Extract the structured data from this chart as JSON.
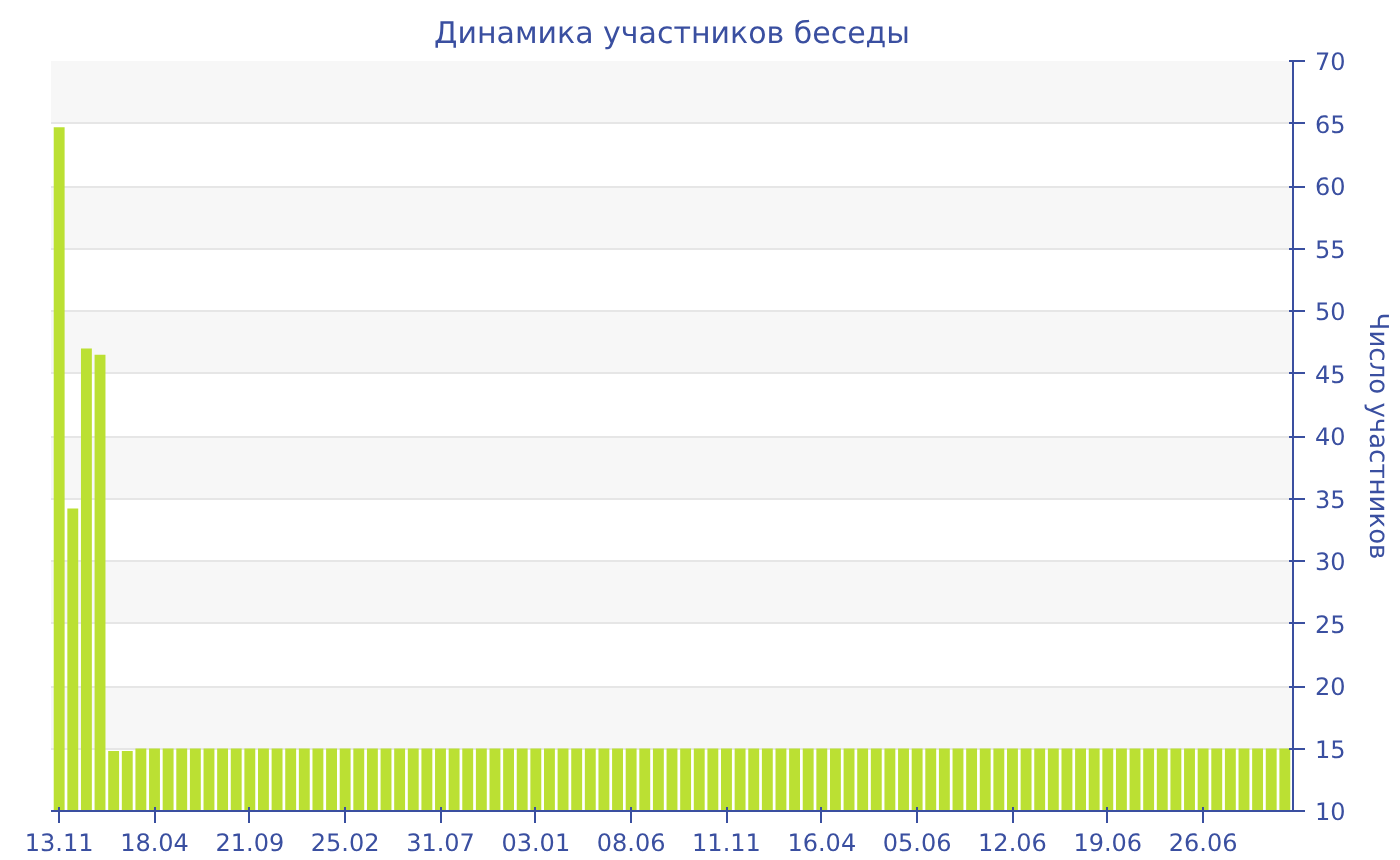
{
  "chart_data": {
    "type": "bar",
    "title": "Динамика участников беседы",
    "ylabel": "Число участников",
    "categories": [
      "13.11",
      null,
      null,
      null,
      null,
      null,
      null,
      "18.04",
      null,
      null,
      null,
      null,
      null,
      null,
      "21.09",
      null,
      null,
      null,
      null,
      null,
      null,
      "25.02",
      null,
      null,
      null,
      null,
      null,
      null,
      "31.07",
      null,
      null,
      null,
      null,
      null,
      null,
      "03.01",
      null,
      null,
      null,
      null,
      null,
      null,
      "08.06",
      null,
      null,
      null,
      null,
      null,
      null,
      "11.11",
      null,
      null,
      null,
      null,
      null,
      null,
      "16.04",
      null,
      null,
      null,
      null,
      null,
      null,
      "05.06",
      null,
      null,
      null,
      null,
      null,
      null,
      "12.06",
      null,
      null,
      null,
      null,
      null,
      null,
      "19.06",
      null,
      null,
      null,
      null,
      null,
      null,
      "26.06",
      null,
      null,
      null,
      null,
      null,
      null
    ],
    "values": [
      64.7,
      34.2,
      47,
      46.5,
      14.8,
      14.8,
      15,
      15,
      15,
      15,
      15,
      15,
      15,
      15,
      15,
      15,
      15,
      15,
      15,
      15,
      15,
      15,
      15,
      15,
      15,
      15,
      15,
      15,
      15,
      15,
      15,
      15,
      15,
      15,
      15,
      15,
      15,
      15,
      15,
      15,
      15,
      15,
      15,
      15,
      15,
      15,
      15,
      15,
      15,
      15,
      15,
      15,
      15,
      15,
      15,
      15,
      15,
      15,
      15,
      15,
      15,
      15,
      15,
      15,
      15,
      15,
      15,
      15,
      15,
      15,
      15,
      15,
      15,
      15,
      15,
      15,
      15,
      15,
      15,
      15,
      15,
      15,
      15,
      15,
      15,
      15,
      15,
      15,
      15,
      15,
      15
    ],
    "color": "#bbe033",
    "ylim": [
      10,
      70
    ],
    "yticks": [
      10,
      15,
      20,
      25,
      30,
      35,
      40,
      45,
      50,
      55,
      60,
      65,
      70
    ],
    "grid": "y"
  }
}
